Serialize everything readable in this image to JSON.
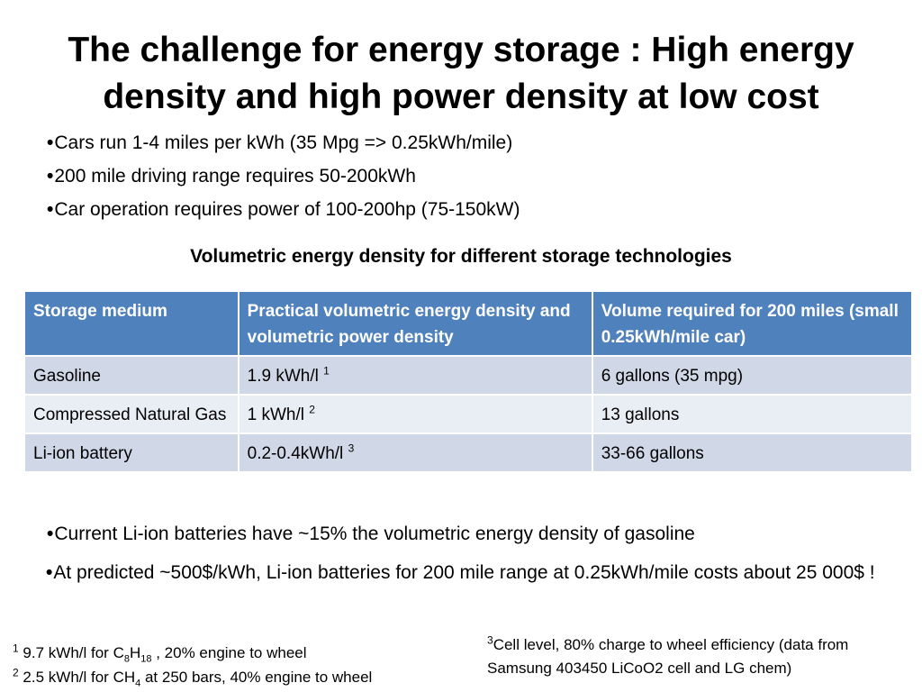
{
  "title": "The challenge for energy storage : High energy density and high power density at low cost",
  "bullet_marker": "•",
  "bullets_top": [
    "Cars run 1-4 miles per kWh (35 Mpg => 0.25kWh/mile)",
    "200 mile driving range requires 50-200kWh",
    "Car operation requires power of 100-200hp (75-150kW)"
  ],
  "table_caption": "Volumetric energy density for different storage technologies",
  "table": {
    "headers": [
      "Storage medium",
      "Practical volumetric energy density and volumetric power density",
      "Volume required for 200 miles (small 0.25kWh/mile car)"
    ],
    "rows": [
      {
        "medium": "Gasoline",
        "density": "1.9 kWh/l",
        "density_ref": "1",
        "volume": "6 gallons (35 mpg)"
      },
      {
        "medium": "Compressed Natural Gas",
        "density": "1 kWh/l",
        "density_ref": "2",
        "volume": "13 gallons"
      },
      {
        "medium": "Li-ion battery",
        "density": "0.2-0.4kWh/l",
        "density_ref": "3",
        "volume": "33-66 gallons"
      }
    ]
  },
  "bullets_bottom": [
    "Current Li-ion batteries have ~15% the volumetric energy density of gasoline",
    "At predicted ~500$/kWh, Li-ion batteries for 200 mile range at 0.25kWh/mile costs about 25 000$ !"
  ],
  "footnotes": {
    "fn1": {
      "num": "1",
      "pre": "9.7 kWh/l for C",
      "sub1": "8",
      "mid": "H",
      "sub2": "18",
      "post": " , 20% engine to wheel"
    },
    "fn2": {
      "num": "2",
      "pre": "2.5 kWh/l for CH",
      "sub1": "4",
      "post": " at 250 bars, 40% engine to wheel"
    },
    "fn3": {
      "num": "3",
      "text": "Cell level, 80% charge to wheel efficiency (data from Samsung 403450 LiCoO2 cell and LG chem)"
    }
  },
  "colors": {
    "header_bg": "#4f81bd",
    "row_odd_bg": "#d0d8e8",
    "row_even_bg": "#e9edf4"
  }
}
